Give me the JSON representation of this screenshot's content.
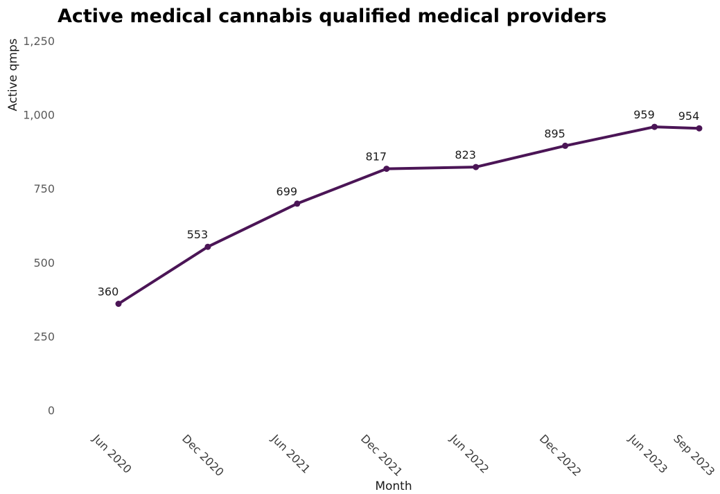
{
  "chart_data": {
    "type": "line",
    "title": "Active medical cannabis qualified medical providers",
    "xlabel": "Month",
    "ylabel": "Active qmps",
    "ylim": [
      0,
      1250
    ],
    "yticks": [
      0,
      250,
      500,
      750,
      1000,
      1250
    ],
    "ytick_labels": [
      "0",
      "250",
      "500",
      "750",
      "1,000",
      "1,250"
    ],
    "x": [
      "2020-06",
      "2020-12",
      "2021-06",
      "2021-12",
      "2022-06",
      "2022-12",
      "2023-06",
      "2023-09"
    ],
    "xtick_labels": [
      "Jun 2020",
      "Dec 2020",
      "Jun 2021",
      "Dec 2021",
      "Jun 2022",
      "Dec 2022",
      "Jun 2023",
      "Sep 2023"
    ],
    "series": [
      {
        "values": [
          360,
          553,
          699,
          817,
          823,
          895,
          959,
          954
        ],
        "color": "#4b1556"
      }
    ],
    "data_labels": [
      "360",
      "553",
      "699",
      "817",
      "823",
      "895",
      "959",
      "954"
    ],
    "grid": false,
    "legend": "none"
  }
}
